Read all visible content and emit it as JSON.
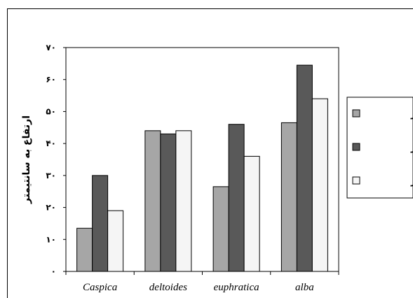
{
  "chart_data": {
    "type": "bar",
    "ylabel": "ارتفاع به سانتیمتر",
    "xlabel": "",
    "ylim": [
      0,
      70
    ],
    "ytick_labels": [
      "۰",
      "۱۰",
      "۲۰",
      "۳۰",
      "۴۰",
      "۵۰",
      "۶۰",
      "۷۰"
    ],
    "categories": [
      "Caspica",
      "deltoides",
      "euphratica",
      "alba"
    ],
    "series": [
      {
        "name": "صفر روز",
        "color": "#a6a6a6",
        "values": [
          13.5,
          44,
          26.5,
          46.5
        ]
      },
      {
        "name": "دو روز",
        "color": "#595959",
        "values": [
          30,
          43,
          46,
          64.5
        ]
      },
      {
        "name": "چهار روز",
        "color": "#f5f5f5",
        "values": [
          19,
          44,
          36,
          54
        ]
      }
    ],
    "grid": false,
    "legend_position": "right"
  }
}
